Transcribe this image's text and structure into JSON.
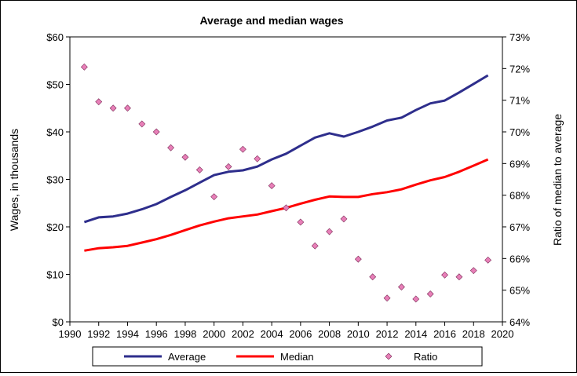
{
  "chart_data": {
    "type": "line",
    "title": "Average and median wages",
    "xlabel": "",
    "ylabel": "Wages, in thousands",
    "y2label": "Ratio of median to average",
    "xlim": [
      1990,
      2020
    ],
    "x_ticks": [
      "1990",
      "1992",
      "1994",
      "1996",
      "1998",
      "2000",
      "2002",
      "2004",
      "2006",
      "2008",
      "2010",
      "2012",
      "2014",
      "2016",
      "2018",
      "2020"
    ],
    "ylim": [
      0,
      60
    ],
    "y_ticks": [
      "$0",
      "$10",
      "$20",
      "$30",
      "$40",
      "$50",
      "$60"
    ],
    "y2lim": [
      64,
      73
    ],
    "y2_ticks": [
      "64%",
      "65%",
      "66%",
      "67%",
      "68%",
      "69%",
      "70%",
      "71%",
      "72%",
      "73%"
    ],
    "grid": false,
    "legend_position": "bottom",
    "x": [
      1991,
      1992,
      1993,
      1994,
      1995,
      1996,
      1997,
      1998,
      1999,
      2000,
      2001,
      2002,
      2003,
      2004,
      2005,
      2006,
      2007,
      2008,
      2009,
      2010,
      2011,
      2012,
      2013,
      2014,
      2015,
      2016,
      2017,
      2018,
      2019
    ],
    "series": [
      {
        "name": "Average",
        "axis": "left",
        "style": "line",
        "color": "#2e2e8c",
        "values": [
          21.0,
          22.0,
          22.2,
          22.8,
          23.7,
          24.8,
          26.3,
          27.7,
          29.3,
          30.9,
          31.6,
          31.9,
          32.7,
          34.2,
          35.4,
          37.1,
          38.8,
          39.7,
          39.0,
          40.0,
          41.1,
          42.4,
          43.0,
          44.6,
          46.0,
          46.6,
          48.3,
          50.1,
          51.9
        ]
      },
      {
        "name": "Median",
        "axis": "left",
        "style": "line",
        "color": "#ff0000",
        "values": [
          15.0,
          15.5,
          15.7,
          16.0,
          16.7,
          17.4,
          18.3,
          19.3,
          20.3,
          21.1,
          21.8,
          22.2,
          22.6,
          23.3,
          24.0,
          24.9,
          25.7,
          26.4,
          26.3,
          26.3,
          26.9,
          27.3,
          27.9,
          28.9,
          29.8,
          30.5,
          31.6,
          32.9,
          34.2
        ]
      },
      {
        "name": "Ratio",
        "axis": "right",
        "style": "scatter",
        "color": "#e87fb8",
        "values": [
          72.05,
          70.95,
          70.75,
          70.75,
          70.25,
          70.0,
          69.5,
          69.2,
          68.8,
          67.95,
          68.9,
          69.45,
          69.15,
          68.3,
          67.6,
          67.15,
          66.4,
          66.85,
          67.25,
          65.98,
          65.42,
          64.75,
          65.1,
          64.72,
          64.88,
          65.48,
          65.42,
          65.62,
          65.95
        ]
      }
    ]
  }
}
